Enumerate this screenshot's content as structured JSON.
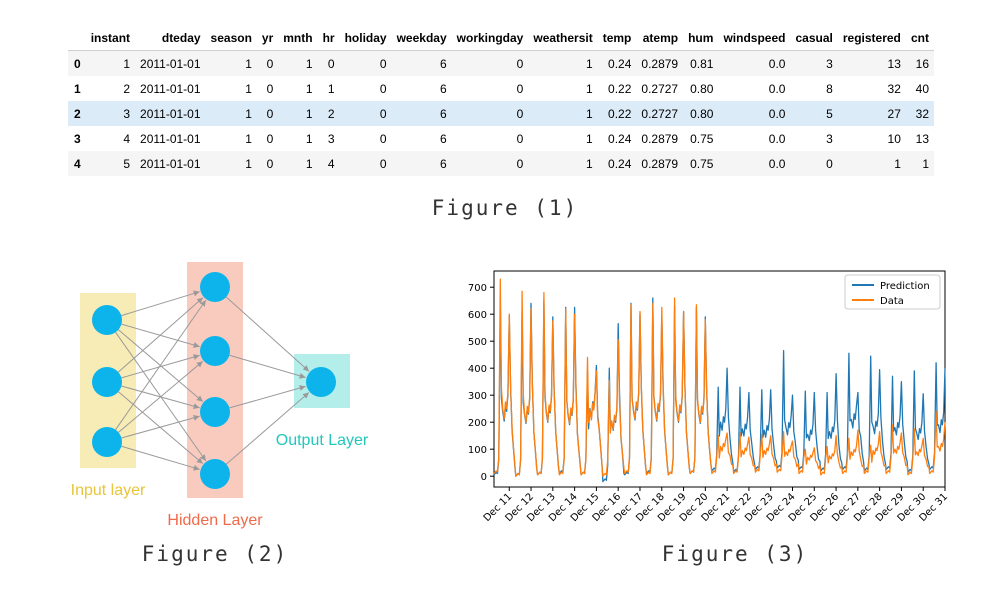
{
  "table": {
    "columns": [
      "",
      "instant",
      "dteday",
      "season",
      "yr",
      "mnth",
      "hr",
      "holiday",
      "weekday",
      "workingday",
      "weathersit",
      "temp",
      "atemp",
      "hum",
      "windspeed",
      "casual",
      "registered",
      "cnt"
    ],
    "rows": [
      [
        "0",
        "1",
        "2011-01-01",
        "1",
        "0",
        "1",
        "0",
        "0",
        "6",
        "0",
        "1",
        "0.24",
        "0.2879",
        "0.81",
        "0.0",
        "3",
        "13",
        "16"
      ],
      [
        "1",
        "2",
        "2011-01-01",
        "1",
        "0",
        "1",
        "1",
        "0",
        "6",
        "0",
        "1",
        "0.22",
        "0.2727",
        "0.80",
        "0.0",
        "8",
        "32",
        "40"
      ],
      [
        "2",
        "3",
        "2011-01-01",
        "1",
        "0",
        "1",
        "2",
        "0",
        "6",
        "0",
        "1",
        "0.22",
        "0.2727",
        "0.80",
        "0.0",
        "5",
        "27",
        "32"
      ],
      [
        "3",
        "4",
        "2011-01-01",
        "1",
        "0",
        "1",
        "3",
        "0",
        "6",
        "0",
        "1",
        "0.24",
        "0.2879",
        "0.75",
        "0.0",
        "3",
        "10",
        "13"
      ],
      [
        "4",
        "5",
        "2011-01-01",
        "1",
        "0",
        "1",
        "4",
        "0",
        "6",
        "0",
        "1",
        "0.24",
        "0.2879",
        "0.75",
        "0.0",
        "0",
        "1",
        "1"
      ]
    ],
    "highlight_row": 2
  },
  "captions": {
    "fig1": "Figure (1)",
    "fig2": "Figure (2)",
    "fig3": "Figure (3)"
  },
  "network": {
    "input_label": "Input layer",
    "hidden_label": "Hidden Layer",
    "output_label": "Output Layer",
    "input_nodes": 3,
    "hidden_nodes": 4,
    "output_nodes": 1,
    "colors": {
      "node": "#0db4eb",
      "input_band": "#f7ecb5",
      "hidden_band": "#f9cbbf",
      "output_band": "#b3eeea",
      "input_text": "#e8c53a",
      "hidden_text": "#ef6a4a",
      "output_text": "#23c7b9",
      "edge": "#9a9a9a"
    }
  },
  "chart_data": {
    "type": "line",
    "x_tick_labels": [
      "Dec 11",
      "Dec 12",
      "Dec 13",
      "Dec 14",
      "Dec 15",
      "Dec 16",
      "Dec 17",
      "Dec 18",
      "Dec 19",
      "Dec 20",
      "Dec 21",
      "Dec 22",
      "Dec 23",
      "Dec 24",
      "Dec 25",
      "Dec 26",
      "Dec 27",
      "Dec 28",
      "Dec 29",
      "Dec 30",
      "Dec 31"
    ],
    "y_ticks": [
      0,
      100,
      200,
      300,
      400,
      500,
      600,
      700
    ],
    "ylim": [
      -40,
      760
    ],
    "x_start_day": 10.3,
    "x_end_day": 31,
    "grid": false,
    "legend_position": "top-right",
    "series": [
      {
        "name": "Prediction",
        "color": "#1f77b4",
        "daily_peaks": [
          [
            640,
            595
          ],
          [
            605,
            640
          ],
          [
            650,
            590
          ],
          [
            625,
            625
          ],
          [
            390,
            410
          ],
          [
            400,
            565
          ],
          [
            640,
            600
          ],
          [
            660,
            600
          ],
          [
            630,
            610
          ],
          [
            625,
            590
          ],
          [
            330,
            400
          ],
          [
            330,
            310
          ],
          [
            320,
            320
          ],
          [
            465,
            300
          ],
          [
            315,
            310
          ],
          [
            310,
            380
          ],
          [
            455,
            310
          ],
          [
            445,
            395
          ],
          [
            370,
            350
          ],
          [
            390,
            305
          ],
          [
            420,
            400
          ]
        ],
        "daily_mid": [
          240,
          230,
          235,
          225,
          250,
          200,
          245,
          240,
          235,
          230,
          200,
          175,
          170,
          180,
          155,
          165,
          210,
          185,
          180,
          160,
          190
        ],
        "daily_low": [
          5,
          0,
          5,
          10,
          5,
          -20,
          5,
          10,
          5,
          10,
          20,
          15,
          25,
          30,
          25,
          20,
          25,
          20,
          25,
          15,
          25
        ]
      },
      {
        "name": "Data",
        "color": "#ff7f0e",
        "daily_peaks": [
          [
            730,
            600
          ],
          [
            685,
            620
          ],
          [
            680,
            575
          ],
          [
            620,
            600
          ],
          [
            440,
            390
          ],
          [
            355,
            505
          ],
          [
            635,
            610
          ],
          [
            640,
            625
          ],
          [
            660,
            610
          ],
          [
            635,
            580
          ],
          [
            150,
            160
          ],
          [
            160,
            145
          ],
          [
            155,
            150
          ],
          [
            165,
            130
          ],
          [
            100,
            105
          ],
          [
            110,
            150
          ],
          [
            140,
            170
          ],
          [
            115,
            165
          ],
          [
            190,
            160
          ],
          [
            175,
            140
          ],
          [
            240,
            200
          ]
        ],
        "daily_mid": [
          250,
          235,
          240,
          230,
          245,
          205,
          250,
          245,
          240,
          235,
          110,
          95,
          95,
          90,
          70,
          75,
          90,
          95,
          100,
          90,
          110
        ],
        "daily_low": [
          10,
          0,
          5,
          5,
          5,
          0,
          10,
          5,
          5,
          10,
          10,
          10,
          15,
          15,
          10,
          5,
          10,
          10,
          10,
          5,
          10
        ]
      }
    ]
  }
}
